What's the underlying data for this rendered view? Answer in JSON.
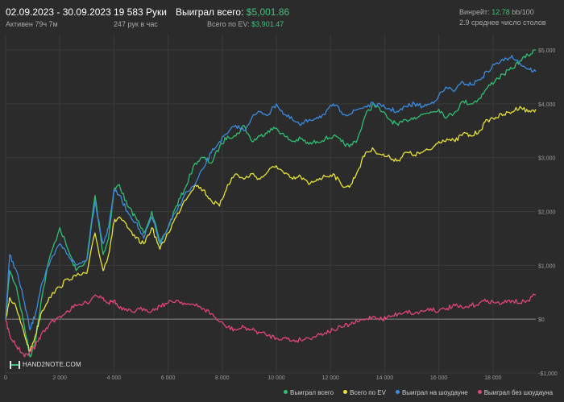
{
  "header": {
    "date_range": "02.09.2023 - 30.09.2023",
    "active": "Активен 79ч 7м",
    "hands": "19 583 Руки",
    "hands_per_hour": "247 рук в час",
    "won_label": "Выиграл всего:",
    "won_value": "$5,001.86",
    "ev_label": "Всего по EV:",
    "ev_value": "$3,901.47",
    "winrate_label": "Винрейт:",
    "winrate_value": "12.78",
    "winrate_suffix": "bb/100",
    "tables": "2.9 среднее число столов"
  },
  "logo": "HAND2NOTE.COM",
  "chart_data": {
    "type": "line",
    "xlim": [
      0,
      19583
    ],
    "ylim": [
      -1000,
      5300
    ],
    "x_ticks": [
      0,
      2000,
      4000,
      6000,
      8000,
      10000,
      12000,
      14000,
      16000,
      18000
    ],
    "x_tick_labels": [
      "0",
      "2 000",
      "4 000",
      "6 000",
      "8 000",
      "10 000",
      "12 000",
      "14 000",
      "16 000",
      "18 000"
    ],
    "y_ticks": [
      -1000,
      0,
      1000,
      2000,
      3000,
      4000,
      5000
    ],
    "y_tick_labels": [
      "-$1,000",
      "$0",
      "$1,000",
      "$2,000",
      "$3,000",
      "$4,000",
      "$5,000"
    ],
    "grid": true,
    "legend_position": "bottom-right",
    "series": [
      {
        "name": "Выиграл всего",
        "color": "#2fbf71",
        "x": [
          0,
          150,
          400,
          700,
          900,
          1100,
          1300,
          1600,
          2000,
          2300,
          2600,
          3000,
          3300,
          3600,
          3800,
          4000,
          4200,
          4500,
          4800,
          5100,
          5400,
          5700,
          6000,
          6300,
          6600,
          7000,
          7300,
          7600,
          7900,
          8200,
          8500,
          8800,
          9100,
          9400,
          9700,
          10000,
          10300,
          10600,
          10900,
          11200,
          11500,
          11800,
          12100,
          12400,
          12700,
          13000,
          13300,
          13600,
          13900,
          14200,
          14500,
          14800,
          15100,
          15400,
          15700,
          16000,
          16300,
          16600,
          16900,
          17200,
          17500,
          17800,
          18100,
          18400,
          18700,
          19000,
          19300,
          19583
        ],
        "y": [
          0,
          900,
          600,
          -150,
          -700,
          -400,
          300,
          1100,
          1700,
          1300,
          900,
          1100,
          2300,
          1200,
          1500,
          2400,
          2500,
          2100,
          1900,
          1600,
          2000,
          1400,
          1700,
          2100,
          2400,
          2900,
          3000,
          2900,
          3200,
          3400,
          3400,
          3600,
          3300,
          3400,
          3500,
          3550,
          3400,
          3300,
          3350,
          3250,
          3300,
          3350,
          3400,
          3300,
          3200,
          3350,
          3800,
          4000,
          3850,
          3700,
          3600,
          3700,
          3750,
          3800,
          3850,
          3900,
          3750,
          3850,
          4050,
          4000,
          4100,
          4300,
          4450,
          4550,
          4650,
          4800,
          4900,
          5000
        ]
      },
      {
        "name": "Всего по EV",
        "color": "#e6e23a",
        "x": [
          0,
          150,
          400,
          700,
          900,
          1100,
          1300,
          1600,
          2000,
          2300,
          2600,
          3000,
          3300,
          3600,
          3800,
          4000,
          4200,
          4500,
          4800,
          5100,
          5400,
          5700,
          6000,
          6300,
          6600,
          7000,
          7300,
          7600,
          7900,
          8200,
          8500,
          8800,
          9100,
          9400,
          9700,
          10000,
          10300,
          10600,
          10900,
          11200,
          11500,
          11800,
          12100,
          12400,
          12700,
          13000,
          13300,
          13600,
          13900,
          14200,
          14500,
          14800,
          15100,
          15400,
          15700,
          16000,
          16300,
          16600,
          16900,
          17200,
          17500,
          17800,
          18100,
          18400,
          18700,
          19000,
          19300,
          19583
        ],
        "y": [
          0,
          400,
          200,
          -300,
          -600,
          -300,
          100,
          400,
          600,
          750,
          800,
          850,
          1600,
          900,
          1200,
          1800,
          1900,
          1700,
          1500,
          1400,
          1700,
          1300,
          1600,
          1900,
          2200,
          2500,
          2400,
          2200,
          2100,
          2500,
          2700,
          2600,
          2700,
          2600,
          2750,
          2850,
          2700,
          2600,
          2650,
          2500,
          2600,
          2650,
          2700,
          2500,
          2450,
          2750,
          3100,
          3150,
          3050,
          3000,
          2950,
          3100,
          3050,
          3100,
          3150,
          3300,
          3350,
          3300,
          3450,
          3400,
          3500,
          3700,
          3750,
          3800,
          3850,
          3950,
          3850,
          3900
        ]
      },
      {
        "name": "Выиграл на шоудауне",
        "color": "#3d8be0",
        "x": [
          0,
          150,
          400,
          700,
          900,
          1100,
          1300,
          1600,
          2000,
          2300,
          2600,
          3000,
          3300,
          3600,
          3800,
          4000,
          4200,
          4500,
          4800,
          5100,
          5400,
          5700,
          6000,
          6300,
          6600,
          7000,
          7300,
          7600,
          7900,
          8200,
          8500,
          8800,
          9100,
          9400,
          9700,
          10000,
          10300,
          10600,
          10900,
          11200,
          11500,
          11800,
          12100,
          12400,
          12700,
          13000,
          13300,
          13600,
          13900,
          14200,
          14500,
          14800,
          15100,
          15400,
          15700,
          16000,
          16300,
          16600,
          16900,
          17200,
          17500,
          17800,
          18100,
          18400,
          18700,
          19000,
          19300,
          19583
        ],
        "y": [
          0,
          1200,
          900,
          300,
          -200,
          100,
          600,
          1000,
          1400,
          1200,
          1000,
          1100,
          2200,
          1400,
          1700,
          2400,
          2300,
          2000,
          1800,
          1500,
          1900,
          1400,
          1700,
          2000,
          2300,
          2500,
          2800,
          3100,
          3300,
          3450,
          3600,
          3500,
          3750,
          3850,
          3800,
          4000,
          3800,
          3700,
          3600,
          3700,
          3750,
          3800,
          4000,
          3850,
          3800,
          3900,
          3950,
          4000,
          3950,
          3900,
          3850,
          3950,
          4000,
          3950,
          4000,
          4150,
          4300,
          4250,
          4400,
          4350,
          4450,
          4600,
          4750,
          4800,
          4900,
          4750,
          4650,
          4600
        ]
      },
      {
        "name": "Выиграл без шоудауна",
        "color": "#e0457b",
        "x": [
          0,
          150,
          400,
          700,
          900,
          1100,
          1300,
          1600,
          2000,
          2300,
          2600,
          3000,
          3300,
          3600,
          3800,
          4000,
          4200,
          4500,
          4800,
          5100,
          5400,
          5700,
          6000,
          6300,
          6600,
          7000,
          7300,
          7600,
          7900,
          8200,
          8500,
          8800,
          9100,
          9400,
          9700,
          10000,
          10300,
          10600,
          10900,
          11200,
          11500,
          11800,
          12100,
          12400,
          12700,
          13000,
          13300,
          13600,
          13900,
          14200,
          14500,
          14800,
          15100,
          15400,
          15700,
          16000,
          16300,
          16600,
          16900,
          17200,
          17500,
          17800,
          18100,
          18400,
          18700,
          19000,
          19300,
          19583
        ],
        "y": [
          0,
          -300,
          -500,
          -700,
          -600,
          -500,
          -300,
          -100,
          50,
          150,
          250,
          300,
          450,
          400,
          300,
          350,
          200,
          150,
          150,
          200,
          150,
          250,
          300,
          350,
          300,
          250,
          200,
          100,
          -50,
          -150,
          -200,
          -150,
          -200,
          -250,
          -300,
          -350,
          -350,
          -400,
          -380,
          -350,
          -300,
          -250,
          -200,
          -150,
          -100,
          -50,
          0,
          50,
          0,
          50,
          100,
          150,
          100,
          150,
          200,
          150,
          200,
          250,
          200,
          250,
          300,
          350,
          300,
          300,
          350,
          300,
          350,
          450
        ]
      }
    ]
  }
}
